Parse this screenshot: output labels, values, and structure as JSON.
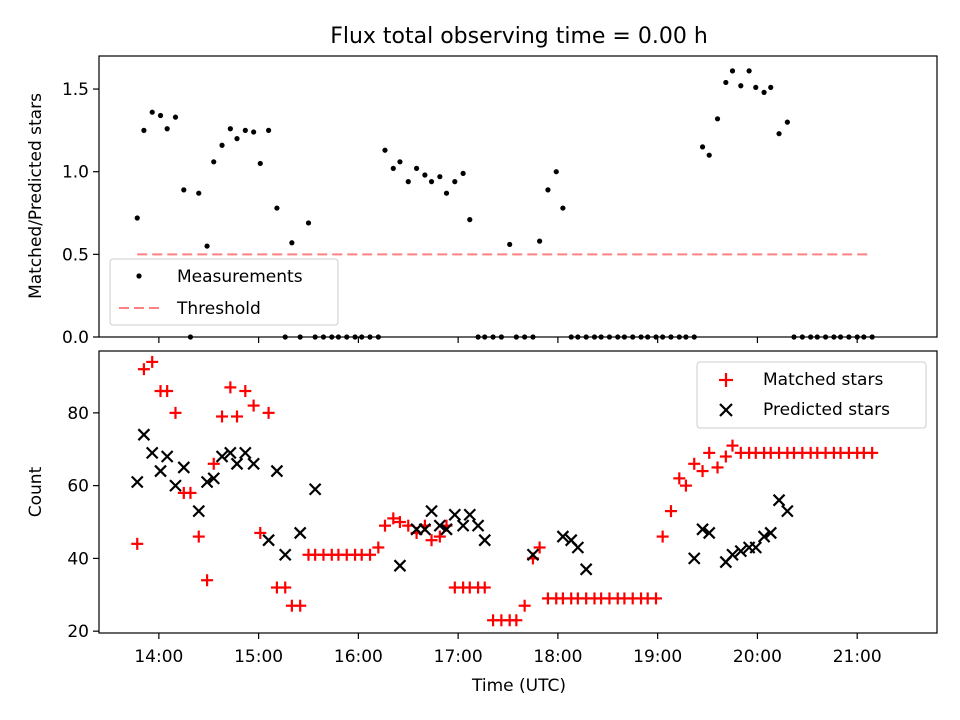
{
  "figure": {
    "title": "Flux total observing time = 0.00 h",
    "xlabel": "Time (UTC)"
  },
  "colors": {
    "measurement": "#000000",
    "threshold": "#ff8080",
    "matched": "#ff0000",
    "predicted": "#000000"
  },
  "chart_data": [
    {
      "type": "scatter",
      "ylabel": "Matched/Predicted stars",
      "ylim": [
        0,
        1.7
      ],
      "yticks": [
        0.0,
        0.5,
        1.0,
        1.5
      ],
      "ytick_labels": [
        "0.0",
        "0.5",
        "1.0",
        "1.5"
      ],
      "legend_position": "lower-left",
      "series": [
        {
          "name": "Measurements",
          "points": [
            [
              "13:47",
              0.72
            ],
            [
              "13:51",
              1.25
            ],
            [
              "13:56",
              1.36
            ],
            [
              "14:01",
              1.34
            ],
            [
              "14:05",
              1.26
            ],
            [
              "14:10",
              1.33
            ],
            [
              "14:15",
              0.89
            ],
            [
              "14:19",
              0.0
            ],
            [
              "14:24",
              0.87
            ],
            [
              "14:29",
              0.55
            ],
            [
              "14:33",
              1.06
            ],
            [
              "14:38",
              1.16
            ],
            [
              "14:43",
              1.26
            ],
            [
              "14:47",
              1.2
            ],
            [
              "14:52",
              1.25
            ],
            [
              "14:57",
              1.24
            ],
            [
              "15:01",
              1.05
            ],
            [
              "15:06",
              1.25
            ],
            [
              "15:11",
              0.78
            ],
            [
              "15:16",
              0.0
            ],
            [
              "15:20",
              0.57
            ],
            [
              "15:25",
              0.0
            ],
            [
              "15:30",
              0.69
            ],
            [
              "15:34",
              0.0
            ],
            [
              "15:39",
              0.0
            ],
            [
              "15:44",
              0.0
            ],
            [
              "15:48",
              0.0
            ],
            [
              "15:53",
              0.0
            ],
            [
              "15:58",
              0.0
            ],
            [
              "16:02",
              0.0
            ],
            [
              "16:07",
              0.0
            ],
            [
              "16:12",
              0.0
            ],
            [
              "16:16",
              1.13
            ],
            [
              "16:21",
              1.02
            ],
            [
              "16:25",
              1.06
            ],
            [
              "16:30",
              0.94
            ],
            [
              "16:35",
              1.02
            ],
            [
              "16:40",
              0.98
            ],
            [
              "16:44",
              0.94
            ],
            [
              "16:49",
              0.97
            ],
            [
              "16:53",
              0.87
            ],
            [
              "16:58",
              0.94
            ],
            [
              "17:03",
              0.99
            ],
            [
              "17:07",
              0.71
            ],
            [
              "17:12",
              0.0
            ],
            [
              "17:16",
              0.0
            ],
            [
              "17:21",
              0.0
            ],
            [
              "17:26",
              0.0
            ],
            [
              "17:31",
              0.56
            ],
            [
              "17:35",
              0.0
            ],
            [
              "17:40",
              0.0
            ],
            [
              "17:45",
              0.0
            ],
            [
              "17:49",
              0.58
            ],
            [
              "17:54",
              0.89
            ],
            [
              "17:59",
              1.0
            ],
            [
              "18:03",
              0.78
            ],
            [
              "18:08",
              0.0
            ],
            [
              "18:12",
              0.0
            ],
            [
              "18:17",
              0.0
            ],
            [
              "18:22",
              0.0
            ],
            [
              "18:26",
              0.0
            ],
            [
              "18:31",
              0.0
            ],
            [
              "18:36",
              0.0
            ],
            [
              "18:40",
              0.0
            ],
            [
              "18:45",
              0.0
            ],
            [
              "18:50",
              0.0
            ],
            [
              "18:54",
              0.0
            ],
            [
              "18:59",
              0.0
            ],
            [
              "19:03",
              0.0
            ],
            [
              "19:08",
              0.0
            ],
            [
              "19:13",
              0.0
            ],
            [
              "19:17",
              0.0
            ],
            [
              "19:22",
              0.0
            ],
            [
              "19:27",
              1.15
            ],
            [
              "19:31",
              1.1
            ],
            [
              "19:36",
              1.32
            ],
            [
              "19:41",
              1.54
            ],
            [
              "19:45",
              1.61
            ],
            [
              "19:50",
              1.52
            ],
            [
              "19:55",
              1.61
            ],
            [
              "19:59",
              1.51
            ],
            [
              "20:04",
              1.48
            ],
            [
              "20:08",
              1.51
            ],
            [
              "20:13",
              1.23
            ],
            [
              "20:18",
              1.3
            ],
            [
              "20:22",
              0.0
            ],
            [
              "20:27",
              0.0
            ],
            [
              "20:32",
              0.0
            ],
            [
              "20:36",
              0.0
            ],
            [
              "20:41",
              0.0
            ],
            [
              "20:46",
              0.0
            ],
            [
              "20:50",
              0.0
            ],
            [
              "20:55",
              0.0
            ],
            [
              "21:00",
              0.0
            ],
            [
              "21:04",
              0.0
            ],
            [
              "21:09",
              0.0
            ]
          ]
        },
        {
          "name": "Threshold",
          "style": "dashed",
          "x": [
            "13:47",
            "21:09"
          ],
          "y": [
            0.5,
            0.5
          ]
        }
      ]
    },
    {
      "type": "scatter",
      "ylabel": "Count",
      "xlabel": "Time (UTC)",
      "ylim": [
        19.5,
        97
      ],
      "yticks": [
        20,
        40,
        60,
        80
      ],
      "ytick_labels": [
        "20",
        "40",
        "60",
        "80"
      ],
      "xlim": [
        "13:24",
        "21:48"
      ],
      "xticks": [
        "14:00",
        "15:00",
        "16:00",
        "17:00",
        "18:00",
        "19:00",
        "20:00",
        "21:00"
      ],
      "legend_position": "upper-right",
      "series": [
        {
          "name": "Matched stars",
          "marker": "+",
          "points": [
            [
              "13:47",
              44
            ],
            [
              "13:51",
              92
            ],
            [
              "13:56",
              94
            ],
            [
              "14:01",
              86
            ],
            [
              "14:05",
              86
            ],
            [
              "14:10",
              80
            ],
            [
              "14:15",
              58
            ],
            [
              "14:19",
              58
            ],
            [
              "14:24",
              46
            ],
            [
              "14:29",
              34
            ],
            [
              "14:33",
              66
            ],
            [
              "14:38",
              79
            ],
            [
              "14:43",
              87
            ],
            [
              "14:47",
              79
            ],
            [
              "14:52",
              86
            ],
            [
              "14:57",
              82
            ],
            [
              "15:01",
              47
            ],
            [
              "15:06",
              80
            ],
            [
              "15:11",
              32
            ],
            [
              "15:16",
              32
            ],
            [
              "15:20",
              27
            ],
            [
              "15:25",
              27
            ],
            [
              "15:30",
              41
            ],
            [
              "15:34",
              41
            ],
            [
              "15:39",
              41
            ],
            [
              "15:44",
              41
            ],
            [
              "15:48",
              41
            ],
            [
              "15:53",
              41
            ],
            [
              "15:58",
              41
            ],
            [
              "16:02",
              41
            ],
            [
              "16:07",
              41
            ],
            [
              "16:12",
              43
            ],
            [
              "16:16",
              49
            ],
            [
              "16:21",
              51
            ],
            [
              "16:25",
              50
            ],
            [
              "16:30",
              49
            ],
            [
              "16:35",
              47
            ],
            [
              "16:40",
              49
            ],
            [
              "16:44",
              45
            ],
            [
              "16:49",
              46
            ],
            [
              "16:53",
              49
            ],
            [
              "16:58",
              32
            ],
            [
              "17:03",
              32
            ],
            [
              "17:07",
              32
            ],
            [
              "17:12",
              32
            ],
            [
              "17:16",
              32
            ],
            [
              "17:21",
              23
            ],
            [
              "17:26",
              23
            ],
            [
              "17:31",
              23
            ],
            [
              "17:35",
              23
            ],
            [
              "17:40",
              27
            ],
            [
              "17:45",
              40
            ],
            [
              "17:49",
              43
            ],
            [
              "17:54",
              29
            ],
            [
              "17:59",
              29
            ],
            [
              "18:03",
              29
            ],
            [
              "18:08",
              29
            ],
            [
              "18:12",
              29
            ],
            [
              "18:17",
              29
            ],
            [
              "18:22",
              29
            ],
            [
              "18:26",
              29
            ],
            [
              "18:31",
              29
            ],
            [
              "18:36",
              29
            ],
            [
              "18:40",
              29
            ],
            [
              "18:45",
              29
            ],
            [
              "18:50",
              29
            ],
            [
              "18:54",
              29
            ],
            [
              "18:59",
              29
            ],
            [
              "19:03",
              46
            ],
            [
              "19:08",
              53
            ],
            [
              "19:13",
              62
            ],
            [
              "19:17",
              60
            ],
            [
              "19:22",
              66
            ],
            [
              "19:27",
              64
            ],
            [
              "19:31",
              69
            ],
            [
              "19:36",
              65
            ],
            [
              "19:41",
              68
            ],
            [
              "19:45",
              71
            ],
            [
              "19:50",
              69
            ],
            [
              "19:55",
              69
            ],
            [
              "19:59",
              69
            ],
            [
              "20:04",
              69
            ],
            [
              "20:08",
              69
            ],
            [
              "20:13",
              69
            ],
            [
              "20:18",
              69
            ],
            [
              "20:22",
              69
            ],
            [
              "20:27",
              69
            ],
            [
              "20:32",
              69
            ],
            [
              "20:36",
              69
            ],
            [
              "20:41",
              69
            ],
            [
              "20:46",
              69
            ],
            [
              "20:50",
              69
            ],
            [
              "20:55",
              69
            ],
            [
              "21:00",
              69
            ],
            [
              "21:04",
              69
            ],
            [
              "21:09",
              69
            ]
          ]
        },
        {
          "name": "Predicted stars",
          "marker": "x",
          "points": [
            [
              "13:47",
              61
            ],
            [
              "13:51",
              74
            ],
            [
              "13:56",
              69
            ],
            [
              "14:01",
              64
            ],
            [
              "14:05",
              68
            ],
            [
              "14:10",
              60
            ],
            [
              "14:15",
              65
            ],
            [
              "14:24",
              53
            ],
            [
              "14:29",
              61
            ],
            [
              "14:33",
              62
            ],
            [
              "14:38",
              68
            ],
            [
              "14:43",
              69
            ],
            [
              "14:47",
              66
            ],
            [
              "14:52",
              69
            ],
            [
              "14:57",
              66
            ],
            [
              "15:06",
              45
            ],
            [
              "15:11",
              64
            ],
            [
              "15:16",
              41
            ],
            [
              "15:25",
              47
            ],
            [
              "15:34",
              59
            ],
            [
              "16:25",
              38
            ],
            [
              "16:35",
              48
            ],
            [
              "16:40",
              48
            ],
            [
              "16:44",
              53
            ],
            [
              "16:49",
              49
            ],
            [
              "16:53",
              48
            ],
            [
              "16:58",
              52
            ],
            [
              "17:03",
              49
            ],
            [
              "17:07",
              52
            ],
            [
              "17:12",
              49
            ],
            [
              "17:16",
              45
            ],
            [
              "17:45",
              41
            ],
            [
              "18:03",
              46
            ],
            [
              "18:08",
              45
            ],
            [
              "18:12",
              43
            ],
            [
              "18:17",
              37
            ],
            [
              "19:22",
              40
            ],
            [
              "19:27",
              48
            ],
            [
              "19:31",
              47
            ],
            [
              "19:41",
              39
            ],
            [
              "19:45",
              41
            ],
            [
              "19:50",
              42
            ],
            [
              "19:55",
              43
            ],
            [
              "19:59",
              43
            ],
            [
              "20:04",
              46
            ],
            [
              "20:08",
              47
            ],
            [
              "20:13",
              56
            ],
            [
              "20:18",
              53
            ]
          ]
        }
      ]
    }
  ]
}
